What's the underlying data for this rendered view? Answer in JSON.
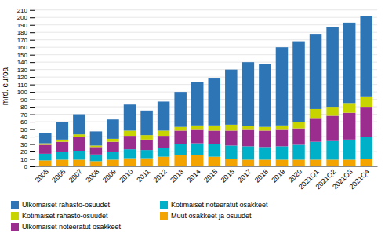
{
  "chart_data": {
    "type": "bar",
    "stacked": true,
    "ylabel": "mrd. euroa",
    "categories": [
      "2005",
      "2006",
      "2007",
      "2008",
      "2009",
      "2010",
      "2011",
      "2012",
      "2013",
      "2014",
      "2015",
      "2016",
      "2017",
      "2018",
      "2019",
      "2020",
      "2021Q1",
      "2021Q2",
      "2021Q3",
      "2021Q4"
    ],
    "series": [
      {
        "name": "Muut osakkeet ja osuudet",
        "color": "#F4A400",
        "values": [
          8,
          9,
          9,
          7,
          9,
          11,
          11,
          13,
          15,
          15,
          13,
          10,
          9,
          9,
          9,
          9,
          9,
          9,
          9,
          10
        ]
      },
      {
        "name": "Kotimaiset noteeratut osakkeet",
        "color": "#00B0C8",
        "values": [
          9,
          10,
          12,
          9,
          10,
          12,
          11,
          12,
          15,
          16,
          17,
          18,
          18,
          17,
          18,
          20,
          24,
          25,
          27,
          30
        ]
      },
      {
        "name": "Ulkomaiset noteeratut osakkeet",
        "color": "#9B2D8E",
        "values": [
          12,
          14,
          18,
          10,
          14,
          18,
          14,
          16,
          18,
          18,
          18,
          20,
          22,
          22,
          22,
          22,
          32,
          34,
          36,
          40
        ]
      },
      {
        "name": "Kotimaiset rahasto-osuudet",
        "color": "#C8D400",
        "values": [
          2,
          3,
          4,
          2,
          4,
          7,
          6,
          7,
          5,
          6,
          7,
          8,
          5,
          5,
          6,
          8,
          12,
          12,
          13,
          14
        ]
      },
      {
        "name": "Ulkomaiset rahasto-osuudet",
        "color": "#2E75B6",
        "values": [
          14,
          24,
          27,
          19,
          26,
          35,
          33,
          39,
          47,
          58,
          63,
          74,
          86,
          84,
          105,
          109,
          101,
          107,
          108,
          108
        ]
      }
    ],
    "ylim": [
      0,
      215
    ],
    "yticks": [
      0,
      10,
      20,
      30,
      40,
      50,
      60,
      70,
      80,
      90,
      100,
      110,
      120,
      130,
      140,
      150,
      160,
      170,
      180,
      190,
      200,
      210
    ],
    "grid": true,
    "legend": "bottom"
  }
}
